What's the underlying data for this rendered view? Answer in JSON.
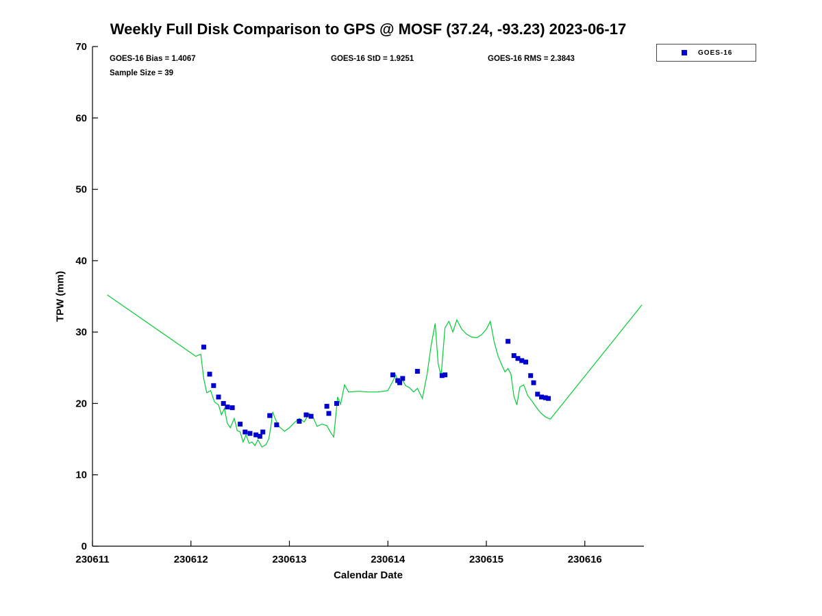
{
  "annotations": {
    "bias": "GOES-16 Bias = 1.4067",
    "std": "GOES-16 StD = 1.9251",
    "rms": "GOES-16 RMS = 2.3843",
    "sample_size": "Sample Size = 39"
  },
  "chart_data": {
    "type": "line+scatter",
    "title": "Weekly Full Disk Comparison to GPS @ MOSF (37.24, -93.23) 2023-06-17",
    "xlabel": "Calendar Date",
    "ylabel": "TPW (mm)",
    "xlim": [
      230611,
      230616.6
    ],
    "ylim": [
      0,
      70
    ],
    "x_ticks": [
      230611,
      230612,
      230613,
      230614,
      230615,
      230616
    ],
    "y_ticks": [
      0,
      10,
      20,
      30,
      40,
      50,
      60,
      70
    ],
    "grid": false,
    "legend": {
      "position": "top-right",
      "entries": [
        {
          "label": "GOES-16",
          "marker": "square",
          "color": "#0000cc"
        }
      ]
    },
    "series": [
      {
        "name": "GPS",
        "type": "line",
        "color": "#00cc33",
        "x": [
          230611.15,
          230612.05,
          230612.1,
          230612.13,
          230612.16,
          230612.2,
          230612.24,
          230612.28,
          230612.31,
          230612.34,
          230612.37,
          230612.4,
          230612.44,
          230612.47,
          230612.5,
          230612.53,
          230612.56,
          230612.59,
          230612.62,
          230612.65,
          230612.68,
          230612.72,
          230612.76,
          230612.79,
          230612.81,
          230612.83,
          230612.86,
          230612.9,
          230612.95,
          230613.0,
          230613.05,
          230613.1,
          230613.15,
          230613.2,
          230613.24,
          230613.28,
          230613.33,
          230613.38,
          230613.42,
          230613.45,
          230613.49,
          230613.52,
          230613.56,
          230613.6,
          230613.7,
          230613.8,
          230613.9,
          230614.0,
          230614.05,
          230614.08,
          230614.11,
          230614.14,
          230614.18,
          230614.22,
          230614.26,
          230614.3,
          230614.35,
          230614.4,
          230614.44,
          230614.48,
          230614.51,
          230614.54,
          230614.58,
          230614.62,
          230614.66,
          230614.7,
          230614.75,
          230614.8,
          230614.85,
          230614.9,
          230614.95,
          230615.0,
          230615.04,
          230615.08,
          230615.12,
          230615.16,
          230615.19,
          230615.22,
          230615.25,
          230615.28,
          230615.31,
          230615.34,
          230615.38,
          230615.42,
          230615.46,
          230615.5,
          230615.55,
          230615.6,
          230615.65,
          230616.58
        ],
        "y": [
          35.2,
          26.6,
          26.9,
          23.5,
          21.5,
          21.8,
          20.2,
          19.8,
          18.4,
          19.3,
          17.2,
          16.6,
          17.9,
          16.2,
          16.0,
          14.6,
          15.6,
          14.4,
          14.6,
          14.1,
          14.9,
          13.9,
          14.2,
          15.0,
          16.6,
          18.8,
          17.7,
          16.7,
          16.1,
          16.6,
          17.3,
          17.9,
          17.4,
          18.6,
          18.1,
          16.8,
          17.1,
          16.9,
          15.9,
          15.3,
          20.9,
          19.9,
          22.6,
          21.6,
          21.7,
          21.6,
          21.6,
          21.8,
          23.1,
          24.0,
          22.8,
          23.5,
          22.5,
          22.2,
          21.6,
          22.1,
          20.7,
          24.2,
          28.2,
          31.2,
          25.6,
          23.8,
          30.6,
          31.5,
          30.0,
          31.7,
          30.4,
          29.7,
          29.3,
          29.2,
          29.6,
          30.4,
          31.5,
          28.6,
          26.6,
          25.3,
          24.4,
          24.9,
          24.1,
          21.0,
          19.8,
          22.3,
          22.6,
          21.1,
          20.4,
          19.6,
          18.7,
          18.1,
          17.8,
          33.8
        ]
      },
      {
        "name": "GOES-16",
        "type": "scatter",
        "marker": "square",
        "color": "#0000cc",
        "x": [
          230612.13,
          230612.19,
          230612.23,
          230612.28,
          230612.33,
          230612.37,
          230612.42,
          230612.5,
          230612.55,
          230612.6,
          230612.66,
          230612.7,
          230612.73,
          230612.8,
          230612.87,
          230613.1,
          230613.17,
          230613.22,
          230613.38,
          230613.4,
          230613.48,
          230614.05,
          230614.1,
          230614.12,
          230614.15,
          230614.3,
          230614.55,
          230614.58,
          230615.22,
          230615.28,
          230615.32,
          230615.36,
          230615.4,
          230615.45,
          230615.48,
          230615.52,
          230615.56,
          230615.6,
          230615.63
        ],
        "y": [
          27.9,
          24.1,
          22.5,
          20.9,
          20.0,
          19.5,
          19.4,
          17.1,
          16.0,
          15.8,
          15.6,
          15.4,
          16.0,
          18.3,
          17.0,
          17.5,
          18.4,
          18.2,
          19.6,
          18.6,
          20.0,
          24.0,
          23.2,
          22.9,
          23.5,
          24.5,
          23.9,
          24.0,
          28.7,
          26.7,
          26.3,
          26.0,
          25.8,
          23.9,
          22.9,
          21.3,
          20.9,
          20.8,
          20.7
        ]
      }
    ]
  }
}
